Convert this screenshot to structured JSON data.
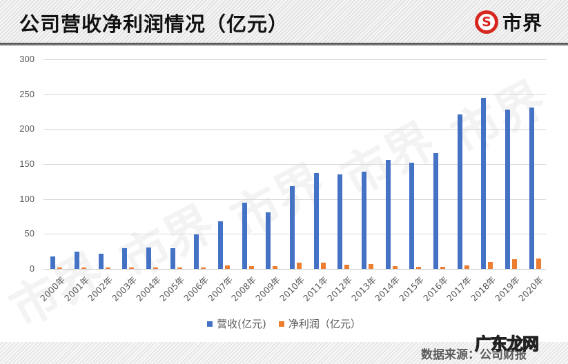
{
  "header": {
    "title": "公司营收净利润情况（亿元）",
    "logo_mark": "S",
    "logo_text": "市界"
  },
  "legend": {
    "items": [
      {
        "label": "营收(亿元)",
        "color": "#4472C4"
      },
      {
        "label": "净利润（亿元）",
        "color": "#ED7D31"
      }
    ]
  },
  "footer": {
    "source": "数据来源：公司财报",
    "overlay_watermark": "广东龙网"
  },
  "watermark_text": "市界",
  "chart_data": {
    "type": "bar",
    "title": "公司营收净利润情况（亿元）",
    "xlabel": "",
    "ylabel": "",
    "ylim": [
      0,
      300
    ],
    "yticks": [
      0,
      50,
      100,
      150,
      200,
      250,
      300
    ],
    "grid": true,
    "legend_position": "bottom",
    "categories": [
      "2000年",
      "2001年",
      "2002年",
      "2003年",
      "2004年",
      "2005年",
      "2006年",
      "2007年",
      "2008年",
      "2009年",
      "2010年",
      "2011年",
      "2012年",
      "2013年",
      "2014年",
      "2015年",
      "2016年",
      "2017年",
      "2018年",
      "2019年",
      "2020年"
    ],
    "series": [
      {
        "name": "营收(亿元)",
        "color": "#4472C4",
        "values": [
          18,
          25,
          22,
          30,
          31,
          30,
          49,
          68,
          95,
          81,
          118,
          137,
          135,
          139,
          156,
          152,
          166,
          221,
          245,
          228,
          231
        ]
      },
      {
        "name": "净利润（亿元）",
        "color": "#ED7D31",
        "values": [
          2,
          2,
          2,
          2,
          2,
          2,
          2,
          5,
          4,
          4,
          9,
          9,
          6,
          7,
          4,
          3,
          3,
          5,
          10,
          14,
          15
        ]
      }
    ]
  }
}
